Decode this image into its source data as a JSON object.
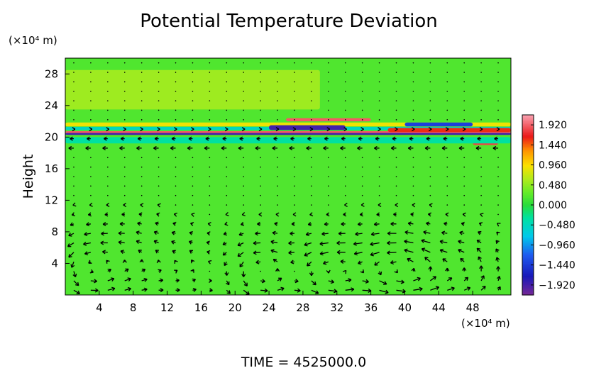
{
  "chart_data": {
    "type": "heatmap",
    "title": "Potential Temperature Deviation",
    "xlabel": "",
    "x_unit": "(×10⁴ m)",
    "ylabel": "Height",
    "y_unit": "(×10⁴ m)",
    "xlim": [
      0,
      52.5
    ],
    "ylim": [
      0,
      30
    ],
    "x_ticks": [
      "4",
      "8",
      "12",
      "16",
      "20",
      "24",
      "28",
      "32",
      "36",
      "40",
      "44",
      "48"
    ],
    "y_ticks": [
      "4",
      "8",
      "12",
      "16",
      "20",
      "24",
      "28"
    ],
    "colorbar": {
      "min": -2.16,
      "max": 2.16,
      "tick_values": [
        1.92,
        1.44,
        0.96,
        0.48,
        0.0,
        -0.48,
        -0.96,
        -1.44,
        -1.92
      ],
      "tick_labels": [
        "1.920",
        "1.440",
        "0.960",
        "0.480",
        "0.000",
        "−0.480",
        "−0.960",
        "−1.440",
        "−1.920"
      ]
    },
    "background_value": 0.2,
    "anomaly_bands": [
      {
        "y": 21.6,
        "thickness": 0.5,
        "x_start": 0,
        "x_end": 52.5,
        "value": 0.9
      },
      {
        "y": 21.1,
        "thickness": 0.4,
        "x_start": 0,
        "x_end": 52.5,
        "value": -0.5
      },
      {
        "y": 20.6,
        "thickness": 0.3,
        "x_start": 0,
        "x_end": 52.5,
        "value": 1.9
      },
      {
        "y": 20.4,
        "thickness": 0.25,
        "x_start": 0,
        "x_end": 52.5,
        "value": -1.9
      },
      {
        "y": 22.2,
        "thickness": 0.4,
        "x_start": 26,
        "x_end": 36,
        "value": 1.9
      },
      {
        "y": 21.2,
        "thickness": 0.6,
        "x_start": 24,
        "x_end": 33,
        "value": -1.9
      },
      {
        "y": 20.9,
        "thickness": 0.5,
        "x_start": 38,
        "x_end": 52.5,
        "value": 1.6
      },
      {
        "y": 21.6,
        "thickness": 0.5,
        "x_start": 40,
        "x_end": 48,
        "value": -1.4
      },
      {
        "y": 19.3,
        "thickness": 0.6,
        "x_start": 48,
        "x_end": 51,
        "value": 1.8
      },
      {
        "y": 19.6,
        "thickness": 0.8,
        "x_start": 0,
        "x_end": 52.5,
        "value": -0.3
      },
      {
        "y": 26.0,
        "thickness": 5.0,
        "x_start": 0,
        "x_end": 30,
        "value": 0.55
      }
    ],
    "vector_field": {
      "x_spacing": 2.0,
      "y_spacing": 1.2,
      "circulation_cells": [
        {
          "x_center": 2.5,
          "y_center": 3.5,
          "strength": 1.0
        },
        {
          "x_center": 8,
          "y_center": 4.5,
          "strength": 0.7
        },
        {
          "x_center": 14,
          "y_center": 3.5,
          "strength": 0.5
        },
        {
          "x_center": 23,
          "y_center": 3.0,
          "strength": 1.1
        },
        {
          "x_center": 31,
          "y_center": 3.0,
          "strength": 1.2
        },
        {
          "x_center": 37,
          "y_center": 3.5,
          "strength": 0.9
        },
        {
          "x_center": 41,
          "y_center": 3.0,
          "strength": 1.2
        },
        {
          "x_center": 47,
          "y_center": 3.0,
          "strength": 0.8
        }
      ],
      "shear_layers": [
        {
          "y": 18.2,
          "direction": "west",
          "strength": 1.0
        },
        {
          "y": 19.5,
          "direction": "west",
          "strength": 0.6
        },
        {
          "y": 21.5,
          "direction": "east",
          "strength": 0.4
        }
      ]
    },
    "time_label": "TIME  =  4525000.0",
    "grid": false
  }
}
